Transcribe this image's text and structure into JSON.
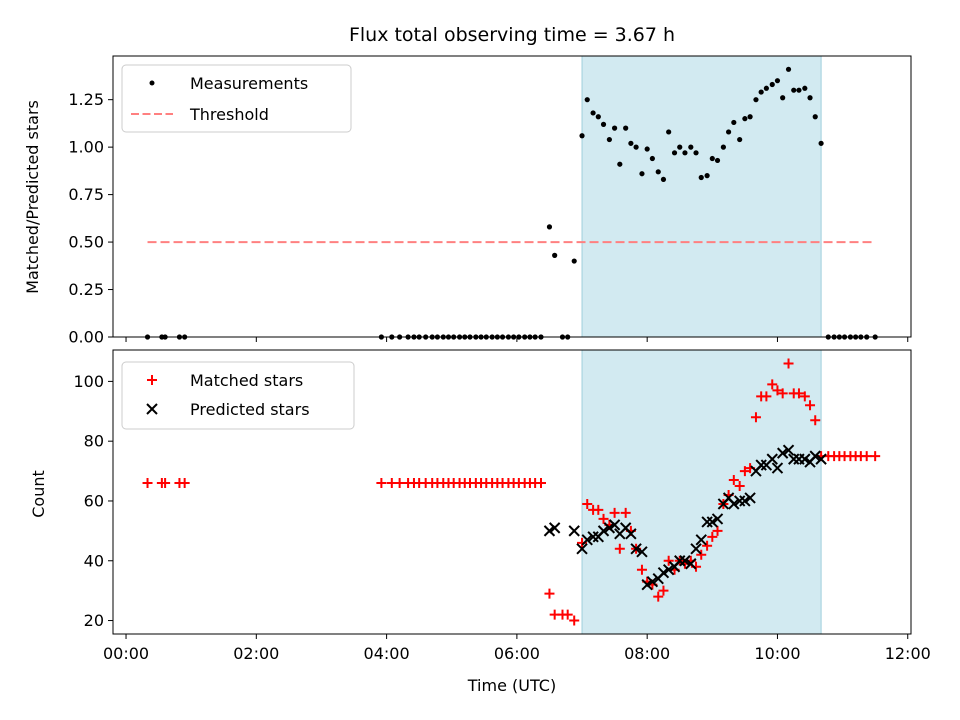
{
  "title": "Flux total observing time = 3.67 h",
  "chart_data": [
    {
      "panel": "top",
      "type": "scatter",
      "ylabel": "Matched/Predicted stars",
      "xlabel": "",
      "xlim_hours": [
        -0.2,
        12.05
      ],
      "ylim": [
        0,
        1.48
      ],
      "yticks": [
        0.0,
        0.25,
        0.5,
        0.75,
        1.0,
        1.25
      ],
      "ytick_labels": [
        "0.00",
        "0.25",
        "0.50",
        "0.75",
        "1.00",
        "1.25"
      ],
      "highlight_hours": [
        7.0,
        10.67
      ],
      "legend": "upper-left",
      "series": [
        {
          "name": "Measurements",
          "kind": "point",
          "color": "#000000",
          "points": [
            [
              0.33,
              0
            ],
            [
              0.55,
              0
            ],
            [
              0.6,
              0
            ],
            [
              0.82,
              0
            ],
            [
              0.9,
              0
            ],
            [
              3.92,
              0
            ],
            [
              4.08,
              0
            ],
            [
              4.2,
              0
            ],
            [
              4.33,
              0
            ],
            [
              4.42,
              0
            ],
            [
              4.5,
              0
            ],
            [
              4.6,
              0
            ],
            [
              4.7,
              0
            ],
            [
              4.78,
              0
            ],
            [
              4.87,
              0
            ],
            [
              4.95,
              0
            ],
            [
              5.03,
              0
            ],
            [
              5.12,
              0
            ],
            [
              5.2,
              0
            ],
            [
              5.28,
              0
            ],
            [
              5.37,
              0
            ],
            [
              5.45,
              0
            ],
            [
              5.53,
              0
            ],
            [
              5.62,
              0
            ],
            [
              5.7,
              0
            ],
            [
              5.78,
              0
            ],
            [
              5.87,
              0
            ],
            [
              5.95,
              0
            ],
            [
              6.03,
              0
            ],
            [
              6.12,
              0
            ],
            [
              6.2,
              0
            ],
            [
              6.28,
              0
            ],
            [
              6.37,
              0
            ],
            [
              6.5,
              0.58
            ],
            [
              6.58,
              0.43
            ],
            [
              6.7,
              0
            ],
            [
              6.78,
              0
            ],
            [
              6.88,
              0.4
            ],
            [
              7.0,
              1.06
            ],
            [
              7.08,
              1.25
            ],
            [
              7.17,
              1.18
            ],
            [
              7.25,
              1.16
            ],
            [
              7.33,
              1.12
            ],
            [
              7.42,
              1.04
            ],
            [
              7.5,
              1.1
            ],
            [
              7.58,
              0.91
            ],
            [
              7.67,
              1.1
            ],
            [
              7.75,
              1.02
            ],
            [
              7.83,
              1.0
            ],
            [
              7.92,
              0.86
            ],
            [
              8.0,
              0.99
            ],
            [
              8.08,
              0.94
            ],
            [
              8.17,
              0.87
            ],
            [
              8.25,
              0.83
            ],
            [
              8.33,
              1.08
            ],
            [
              8.42,
              0.97
            ],
            [
              8.5,
              1.0
            ],
            [
              8.58,
              0.97
            ],
            [
              8.67,
              1.0
            ],
            [
              8.75,
              0.97
            ],
            [
              8.83,
              0.84
            ],
            [
              8.92,
              0.85
            ],
            [
              9.0,
              0.94
            ],
            [
              9.08,
              0.93
            ],
            [
              9.17,
              1.0
            ],
            [
              9.25,
              1.08
            ],
            [
              9.33,
              1.13
            ],
            [
              9.42,
              1.04
            ],
            [
              9.5,
              1.15
            ],
            [
              9.58,
              1.16
            ],
            [
              9.67,
              1.25
            ],
            [
              9.75,
              1.29
            ],
            [
              9.83,
              1.31
            ],
            [
              9.92,
              1.33
            ],
            [
              10.0,
              1.35
            ],
            [
              10.08,
              1.26
            ],
            [
              10.17,
              1.41
            ],
            [
              10.25,
              1.3
            ],
            [
              10.33,
              1.3
            ],
            [
              10.42,
              1.31
            ],
            [
              10.5,
              1.26
            ],
            [
              10.58,
              1.16
            ],
            [
              10.67,
              1.02
            ],
            [
              10.78,
              0
            ],
            [
              10.87,
              0
            ],
            [
              10.95,
              0
            ],
            [
              11.03,
              0
            ],
            [
              11.12,
              0
            ],
            [
              11.2,
              0
            ],
            [
              11.28,
              0
            ],
            [
              11.37,
              0
            ],
            [
              11.5,
              0
            ]
          ]
        },
        {
          "name": "Threshold",
          "kind": "dashed-line",
          "color": "#ff8080",
          "points": [
            [
              0.33,
              0.5
            ],
            [
              11.5,
              0.5
            ]
          ]
        }
      ]
    },
    {
      "panel": "bottom",
      "type": "scatter",
      "ylabel": "Count",
      "xlabel": "Time (UTC)",
      "xlim_hours": [
        -0.2,
        12.05
      ],
      "xticks_hours": [
        0,
        2,
        4,
        6,
        8,
        10,
        12
      ],
      "xtick_labels": [
        "00:00",
        "02:00",
        "04:00",
        "06:00",
        "08:00",
        "10:00",
        "12:00"
      ],
      "ylim": [
        15.5,
        110.5
      ],
      "yticks": [
        20,
        40,
        60,
        80,
        100
      ],
      "ytick_labels": [
        "20",
        "40",
        "60",
        "80",
        "100"
      ],
      "highlight_hours": [
        7.0,
        10.67
      ],
      "legend": "upper-left",
      "series": [
        {
          "name": "Matched stars",
          "kind": "plus",
          "color": "#ff0000",
          "points": [
            [
              0.33,
              66
            ],
            [
              0.55,
              66
            ],
            [
              0.6,
              66
            ],
            [
              0.82,
              66
            ],
            [
              0.9,
              66
            ],
            [
              3.92,
              66
            ],
            [
              4.08,
              66
            ],
            [
              4.2,
              66
            ],
            [
              4.33,
              66
            ],
            [
              4.42,
              66
            ],
            [
              4.5,
              66
            ],
            [
              4.6,
              66
            ],
            [
              4.7,
              66
            ],
            [
              4.78,
              66
            ],
            [
              4.87,
              66
            ],
            [
              4.95,
              66
            ],
            [
              5.03,
              66
            ],
            [
              5.12,
              66
            ],
            [
              5.2,
              66
            ],
            [
              5.28,
              66
            ],
            [
              5.37,
              66
            ],
            [
              5.45,
              66
            ],
            [
              5.53,
              66
            ],
            [
              5.62,
              66
            ],
            [
              5.7,
              66
            ],
            [
              5.78,
              66
            ],
            [
              5.87,
              66
            ],
            [
              5.95,
              66
            ],
            [
              6.03,
              66
            ],
            [
              6.12,
              66
            ],
            [
              6.2,
              66
            ],
            [
              6.28,
              66
            ],
            [
              6.37,
              66
            ],
            [
              6.5,
              29
            ],
            [
              6.58,
              22
            ],
            [
              6.7,
              22
            ],
            [
              6.78,
              22
            ],
            [
              6.88,
              20
            ],
            [
              7.0,
              46
            ],
            [
              7.08,
              59
            ],
            [
              7.17,
              57
            ],
            [
              7.25,
              57
            ],
            [
              7.33,
              54
            ],
            [
              7.42,
              52
            ],
            [
              7.5,
              56
            ],
            [
              7.58,
              44
            ],
            [
              7.67,
              56
            ],
            [
              7.75,
              50
            ],
            [
              7.83,
              44
            ],
            [
              7.92,
              37
            ],
            [
              8.0,
              33
            ],
            [
              8.08,
              32
            ],
            [
              8.17,
              28
            ],
            [
              8.25,
              30
            ],
            [
              8.33,
              40
            ],
            [
              8.42,
              37
            ],
            [
              8.5,
              40
            ],
            [
              8.58,
              39
            ],
            [
              8.67,
              40
            ],
            [
              8.75,
              38
            ],
            [
              8.83,
              42
            ],
            [
              8.92,
              45
            ],
            [
              9.0,
              48
            ],
            [
              9.08,
              50
            ],
            [
              9.17,
              59
            ],
            [
              9.25,
              62
            ],
            [
              9.33,
              67
            ],
            [
              9.42,
              65
            ],
            [
              9.5,
              70
            ],
            [
              9.58,
              71
            ],
            [
              9.67,
              88
            ],
            [
              9.75,
              95
            ],
            [
              9.83,
              95
            ],
            [
              9.92,
              99
            ],
            [
              10.0,
              97
            ],
            [
              10.08,
              96
            ],
            [
              10.17,
              106
            ],
            [
              10.25,
              96
            ],
            [
              10.33,
              96
            ],
            [
              10.42,
              95
            ],
            [
              10.5,
              92
            ],
            [
              10.58,
              87
            ],
            [
              10.67,
              75
            ],
            [
              10.78,
              75
            ],
            [
              10.87,
              75
            ],
            [
              10.95,
              75
            ],
            [
              11.03,
              75
            ],
            [
              11.12,
              75
            ],
            [
              11.2,
              75
            ],
            [
              11.28,
              75
            ],
            [
              11.37,
              75
            ],
            [
              11.5,
              75
            ]
          ]
        },
        {
          "name": "Predicted stars",
          "kind": "x",
          "color": "#000000",
          "points": [
            [
              6.5,
              50
            ],
            [
              6.58,
              51
            ],
            [
              6.88,
              50
            ],
            [
              7.0,
              44
            ],
            [
              7.08,
              47
            ],
            [
              7.17,
              48
            ],
            [
              7.25,
              48
            ],
            [
              7.33,
              50
            ],
            [
              7.42,
              51
            ],
            [
              7.5,
              52
            ],
            [
              7.58,
              49
            ],
            [
              7.67,
              51
            ],
            [
              7.75,
              49
            ],
            [
              7.83,
              44
            ],
            [
              7.92,
              43
            ],
            [
              8.0,
              32
            ],
            [
              8.08,
              33
            ],
            [
              8.17,
              34
            ],
            [
              8.25,
              36
            ],
            [
              8.33,
              37
            ],
            [
              8.42,
              38
            ],
            [
              8.5,
              40
            ],
            [
              8.58,
              40
            ],
            [
              8.67,
              39
            ],
            [
              8.75,
              44
            ],
            [
              8.83,
              47
            ],
            [
              8.92,
              53
            ],
            [
              9.0,
              53
            ],
            [
              9.08,
              54
            ],
            [
              9.17,
              59
            ],
            [
              9.25,
              61
            ],
            [
              9.33,
              59
            ],
            [
              9.42,
              60
            ],
            [
              9.5,
              60
            ],
            [
              9.58,
              61
            ],
            [
              9.67,
              70
            ],
            [
              9.75,
              72
            ],
            [
              9.83,
              72
            ],
            [
              9.92,
              74
            ],
            [
              10.0,
              71
            ],
            [
              10.08,
              76
            ],
            [
              10.17,
              77
            ],
            [
              10.25,
              74
            ],
            [
              10.33,
              74
            ],
            [
              10.42,
              74
            ],
            [
              10.5,
              73
            ],
            [
              10.58,
              75
            ],
            [
              10.67,
              74
            ]
          ]
        }
      ]
    }
  ]
}
